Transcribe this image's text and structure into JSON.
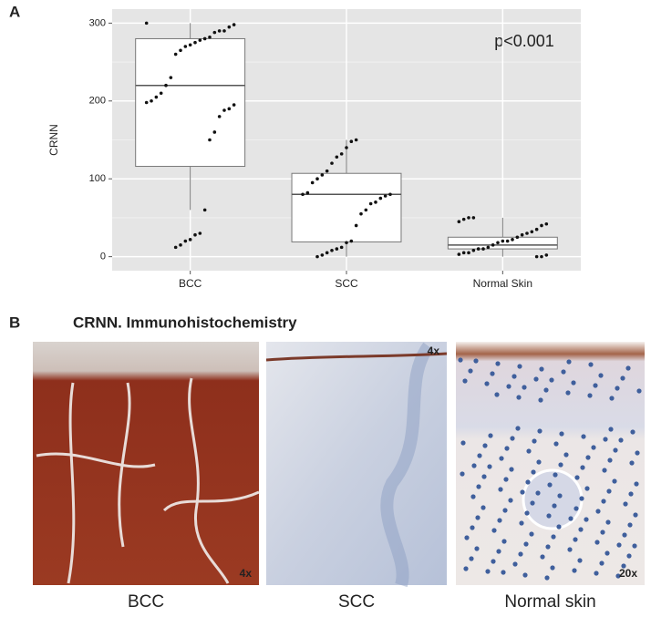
{
  "panel_labels": [
    "A",
    "B"
  ],
  "chart_data": {
    "type": "box",
    "ylabel": "CRNN",
    "annotation": "p<0.001",
    "categories": [
      "BCC",
      "SCC",
      "Normal Skin"
    ],
    "boxes": [
      {
        "whisker_low": 60,
        "q1": 116,
        "median": 220,
        "q3": 280,
        "whisker_high": 300
      },
      {
        "whisker_low": 0,
        "q1": 19,
        "median": 80,
        "q3": 107,
        "whisker_high": 150
      },
      {
        "whisker_low": 0,
        "q1": 10,
        "median": 15,
        "q3": 25,
        "whisker_high": 50
      }
    ],
    "points": [
      [
        300,
        298,
        295,
        290,
        290,
        288,
        282,
        280,
        278,
        275,
        272,
        270,
        265,
        260,
        230,
        220,
        210,
        205,
        200,
        198,
        195,
        190,
        188,
        180,
        160,
        150,
        60,
        30,
        28,
        22,
        20,
        15,
        12
      ],
      [
        150,
        148,
        140,
        132,
        128,
        120,
        110,
        105,
        100,
        95,
        82,
        80,
        80,
        78,
        75,
        70,
        68,
        60,
        55,
        40,
        20,
        18,
        12,
        10,
        8,
        5,
        2,
        0
      ],
      [
        50,
        50,
        48,
        45,
        42,
        40,
        35,
        32,
        30,
        28,
        25,
        22,
        20,
        20,
        18,
        15,
        12,
        10,
        10,
        8,
        5,
        5,
        3,
        2,
        0,
        0
      ]
    ],
    "ylim": [
      -18,
      318
    ],
    "yticks": [
      0,
      100,
      200,
      300
    ],
    "minor_yticks": [
      50,
      150,
      250
    ],
    "grid": true,
    "background": "#e5e5e5",
    "box_color": "#ffffff",
    "point_color": "#111111"
  },
  "panel_b": {
    "title": "CRNN. Immunohistochemistry",
    "images": [
      {
        "caption": "BCC",
        "magnification": "4x"
      },
      {
        "caption": "SCC",
        "magnification": "4x"
      },
      {
        "caption": "Normal skin",
        "magnification": "20x"
      }
    ]
  }
}
